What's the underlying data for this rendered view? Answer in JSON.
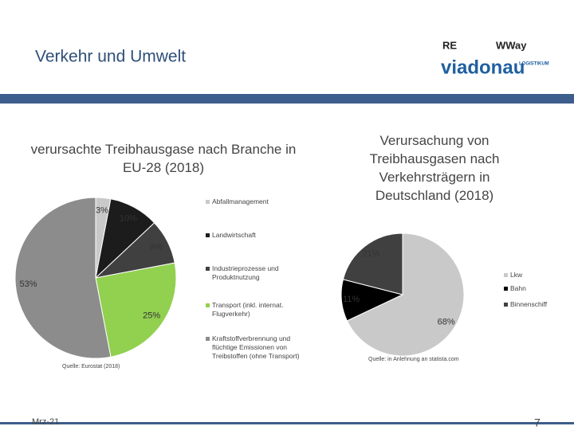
{
  "slide": {
    "title": "Verkehr und Umwelt",
    "date": "Mrz-21",
    "page": "7"
  },
  "logos": [
    "RE",
    "WWay",
    "viadonau",
    "LOGISTIKUM"
  ],
  "chart_data": [
    {
      "type": "pie",
      "title": "verursachte Treibhausgase nach Branche in EU-28 (2018)",
      "categories": [
        "Abfallmanagement",
        "Landwirtschaft",
        "Industrieprozesse und Produktnutzung",
        "Transport (inkl. internat. Flugverkehr)",
        "Kraftstoffverbrennung und flüchtige Emissionen von Treibstoffen (ohne Transport)"
      ],
      "values": [
        3,
        10,
        9,
        25,
        53
      ],
      "value_labels": [
        "3%",
        "10%",
        "9%",
        "25%",
        "53%"
      ],
      "colors": [
        "#c9c9c9",
        "#1c1c1c",
        "#404040",
        "#92d050",
        "#8c8c8c"
      ],
      "source": "Quelle: Eurostat (2018)"
    },
    {
      "type": "pie",
      "title": "Verursachung von Treibhausgasen nach Verkehrsträgern in Deutschland (2018)",
      "categories": [
        "Lkw",
        "Bahn",
        "Binnenschiff"
      ],
      "values": [
        68,
        11,
        21
      ],
      "value_labels": [
        "68%",
        "11%",
        "21%"
      ],
      "colors": [
        "#c9c9c9",
        "#000000",
        "#404040"
      ],
      "source": "Quelle: in Anlehnung an statista.com"
    }
  ]
}
